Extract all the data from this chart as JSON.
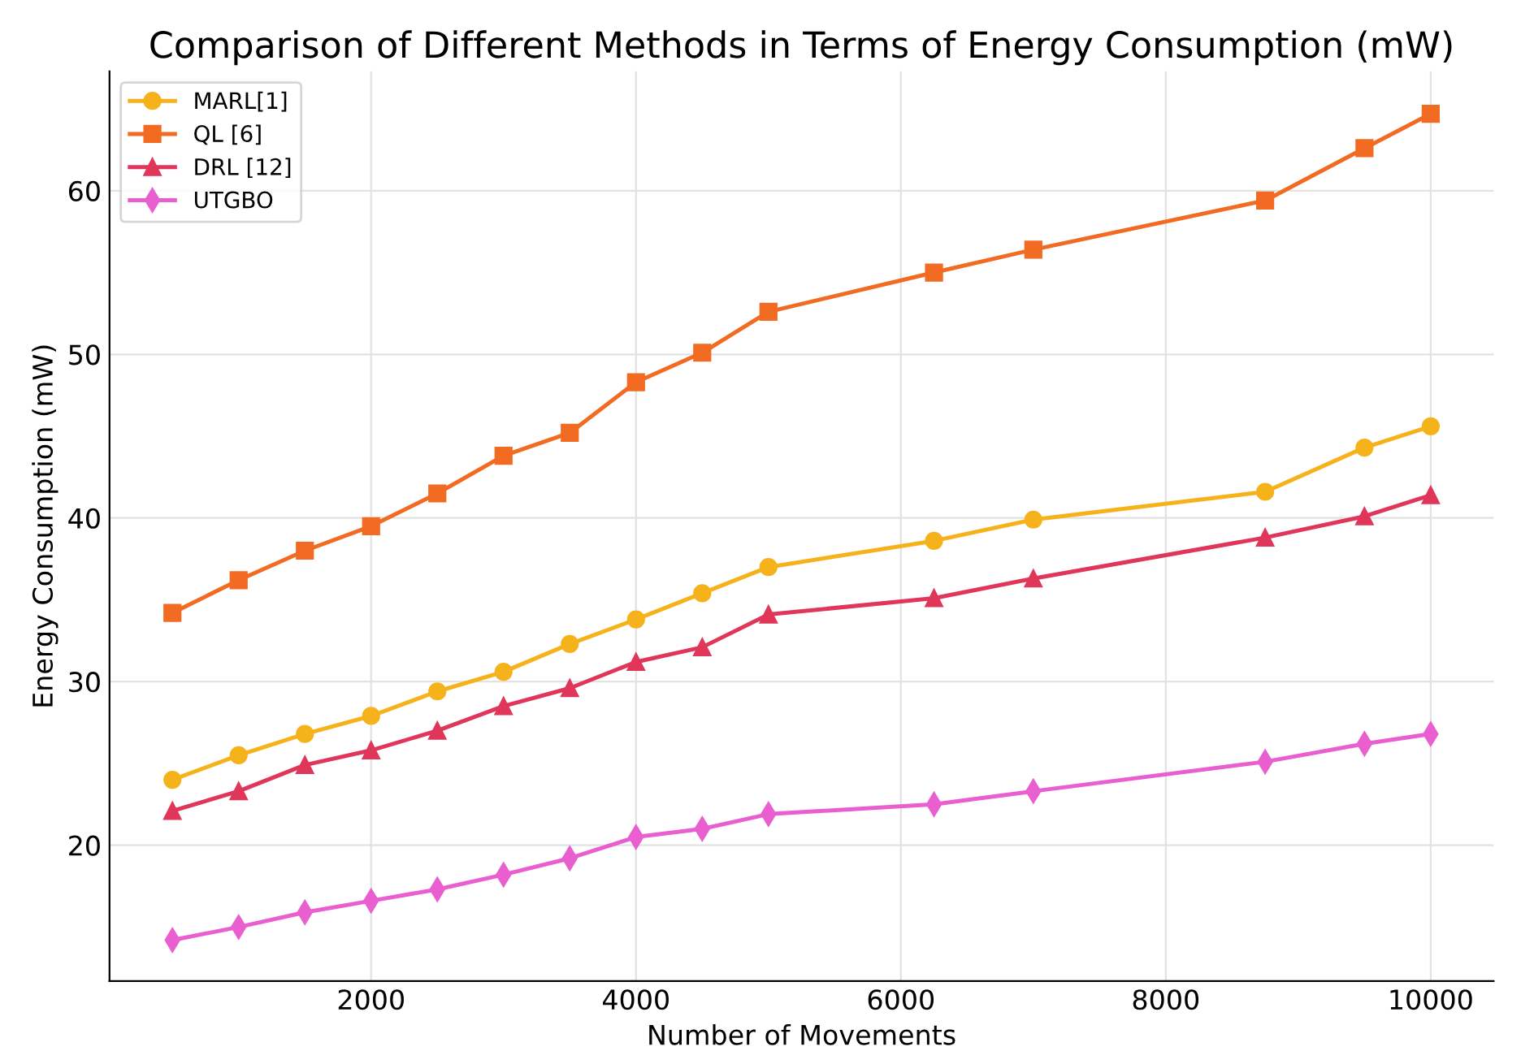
{
  "chart_data": {
    "type": "line",
    "title": "Comparison of Different Methods in Terms of Energy Consumption (mW)",
    "xlabel": "Number of Movements",
    "ylabel": "Energy Consumption (mW)",
    "x": [
      500,
      1000,
      1500,
      2000,
      2500,
      3000,
      3500,
      4000,
      4500,
      5000,
      6250,
      7000,
      8750,
      9500,
      10000
    ],
    "series": [
      {
        "name": "MARL[1]",
        "color": "#f5b21a",
        "marker": "circle",
        "values": [
          24.0,
          25.5,
          26.8,
          27.9,
          29.4,
          30.6,
          32.3,
          33.8,
          35.4,
          37.0,
          38.6,
          39.9,
          41.6,
          44.3,
          45.6
        ]
      },
      {
        "name": "QL [6]",
        "color": "#f26b22",
        "marker": "square",
        "values": [
          34.2,
          36.2,
          38.0,
          39.5,
          41.5,
          43.8,
          45.2,
          48.3,
          50.1,
          52.6,
          55.0,
          56.4,
          59.4,
          62.6,
          64.7
        ]
      },
      {
        "name": "DRL [12]",
        "color": "#e0365a",
        "marker": "triangle",
        "values": [
          22.1,
          23.3,
          24.9,
          25.8,
          27.0,
          28.5,
          29.6,
          31.2,
          32.1,
          34.1,
          35.1,
          36.3,
          38.8,
          40.1,
          41.4
        ]
      },
      {
        "name": "UTGBO",
        "color": "#ea5fcf",
        "marker": "diamond",
        "values": [
          14.2,
          15.0,
          15.9,
          16.6,
          17.3,
          18.2,
          19.2,
          20.5,
          21.0,
          21.9,
          22.5,
          23.3,
          25.1,
          26.2,
          26.8
        ]
      }
    ],
    "xlim": [
      25,
      10475
    ],
    "ylim": [
      11.7,
      67.3
    ],
    "xticks": [
      2000,
      4000,
      6000,
      8000,
      10000
    ],
    "yticks": [
      20,
      30,
      40,
      50,
      60
    ],
    "grid": true,
    "legend": "top left",
    "line_style": "solid"
  }
}
